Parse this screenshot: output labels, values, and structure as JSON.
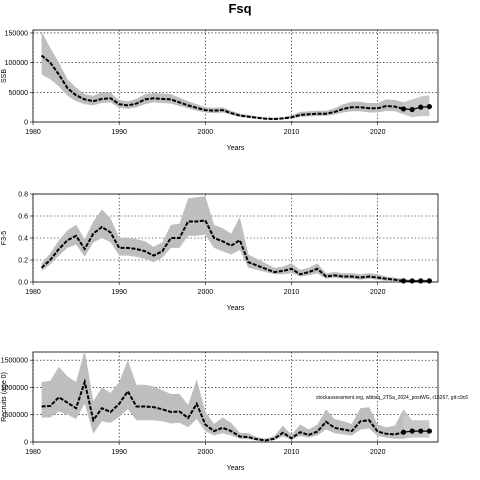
{
  "title": "Fsq",
  "annotation": "stockassessment.org, wbbsq_2TSa_2024_postWG, r15267, git:c9c6",
  "colors": {
    "band": "#bebebe",
    "line": "#000000",
    "grid": "#000000"
  },
  "chart_data": [
    {
      "type": "line",
      "ylabel": "SSB",
      "xlabel": "Years",
      "xlim": [
        1980,
        2027
      ],
      "ylim": [
        0,
        155000
      ],
      "xticks": [
        1980,
        1990,
        2000,
        2010,
        2020
      ],
      "yticks": [
        0,
        50000,
        100000,
        150000
      ],
      "ytick_labels": [
        "0",
        "50000",
        "100000",
        "150000"
      ],
      "grid": true,
      "series": [
        {
          "x": [
            1981,
            1982,
            1983,
            1984,
            1985,
            1986,
            1987,
            1988,
            1989,
            1990,
            1991,
            1992,
            1993,
            1994,
            1995,
            1996,
            1997,
            1998,
            1999,
            2000,
            2001,
            2002,
            2003,
            2004,
            2005,
            2006,
            2007,
            2008,
            2009,
            2010,
            2011,
            2012,
            2013,
            2014,
            2015,
            2016,
            2017,
            2018,
            2019,
            2020,
            2021,
            2022,
            2023
          ],
          "estimate": [
            112000,
            100000,
            80000,
            57000,
            45000,
            38000,
            35000,
            39000,
            40000,
            30000,
            28000,
            31000,
            38000,
            40000,
            39000,
            38000,
            33000,
            28000,
            24000,
            20000,
            19000,
            20000,
            15000,
            11000,
            9000,
            7000,
            5500,
            5000,
            6000,
            8000,
            12000,
            13000,
            14000,
            14000,
            17000,
            22000,
            25000,
            25000,
            23000,
            23000,
            27000,
            26000,
            22000
          ],
          "lower": [
            80000,
            72000,
            60000,
            44000,
            35000,
            30000,
            28000,
            32000,
            33000,
            24000,
            22000,
            25000,
            30000,
            33000,
            32000,
            31000,
            27000,
            23000,
            19000,
            16000,
            15000,
            16000,
            12000,
            8500,
            7000,
            5200,
            4000,
            3600,
            4500,
            5500,
            8500,
            9500,
            10000,
            10500,
            12500,
            16000,
            18000,
            18000,
            16000,
            16000,
            18500,
            18000,
            13000
          ],
          "upper": [
            152000,
            125000,
            100000,
            72000,
            58000,
            47000,
            44000,
            50000,
            49000,
            37000,
            35000,
            39000,
            47000,
            49000,
            48000,
            47000,
            41000,
            35000,
            30000,
            25000,
            24000,
            25000,
            19000,
            14000,
            12000,
            9500,
            7500,
            7000,
            8000,
            11000,
            17000,
            18000,
            19000,
            19000,
            23000,
            30000,
            34000,
            34000,
            32000,
            32000,
            38000,
            37000,
            33000
          ]
        },
        {
          "x": [
            2023,
            2024,
            2025,
            2026
          ],
          "estimate": [
            22000,
            21000,
            25000,
            26000
          ],
          "lower": [
            13000,
            8000,
            10000,
            10000
          ],
          "upper": [
            33000,
            38000,
            43000,
            45000
          ]
        }
      ],
      "forecast_points": {
        "x": [
          2023,
          2024,
          2025,
          2026
        ],
        "y": [
          22000,
          21000,
          25000,
          26000
        ]
      }
    },
    {
      "type": "line",
      "ylabel": "F3-5",
      "xlabel": "Years",
      "xlim": [
        1980,
        2027
      ],
      "ylim": [
        0,
        0.8
      ],
      "xticks": [
        1980,
        1990,
        2000,
        2010,
        2020
      ],
      "yticks": [
        0.0,
        0.2,
        0.4,
        0.6,
        0.8
      ],
      "ytick_labels": [
        "0.0",
        "0.2",
        "0.4",
        "0.6",
        "0.8"
      ],
      "grid": true,
      "series": [
        {
          "x": [
            1981,
            1982,
            1983,
            1984,
            1985,
            1986,
            1987,
            1988,
            1989,
            1990,
            1991,
            1992,
            1993,
            1994,
            1995,
            1996,
            1997,
            1998,
            1999,
            2000,
            2001,
            2002,
            2003,
            2004,
            2005,
            2006,
            2007,
            2008,
            2009,
            2010,
            2011,
            2012,
            2013,
            2014,
            2015,
            2016,
            2017,
            2018,
            2019,
            2020,
            2021,
            2022,
            2023
          ],
          "estimate": [
            0.13,
            0.2,
            0.3,
            0.38,
            0.42,
            0.3,
            0.44,
            0.5,
            0.45,
            0.31,
            0.31,
            0.3,
            0.28,
            0.24,
            0.28,
            0.4,
            0.4,
            0.55,
            0.55,
            0.56,
            0.4,
            0.37,
            0.33,
            0.38,
            0.18,
            0.15,
            0.12,
            0.09,
            0.1,
            0.12,
            0.07,
            0.09,
            0.12,
            0.05,
            0.06,
            0.05,
            0.05,
            0.04,
            0.05,
            0.04,
            0.03,
            0.02,
            0.01
          ],
          "lower": [
            0.1,
            0.16,
            0.24,
            0.31,
            0.34,
            0.23,
            0.36,
            0.4,
            0.36,
            0.24,
            0.24,
            0.23,
            0.21,
            0.18,
            0.22,
            0.31,
            0.31,
            0.42,
            0.42,
            0.43,
            0.31,
            0.28,
            0.25,
            0.29,
            0.13,
            0.11,
            0.09,
            0.07,
            0.07,
            0.08,
            0.05,
            0.06,
            0.08,
            0.03,
            0.04,
            0.03,
            0.03,
            0.02,
            0.03,
            0.02,
            0.01,
            0.01,
            0.005
          ],
          "upper": [
            0.17,
            0.26,
            0.38,
            0.47,
            0.52,
            0.39,
            0.55,
            0.66,
            0.58,
            0.4,
            0.4,
            0.39,
            0.37,
            0.32,
            0.36,
            0.52,
            0.53,
            0.76,
            0.77,
            0.78,
            0.52,
            0.49,
            0.44,
            0.59,
            0.25,
            0.21,
            0.17,
            0.13,
            0.14,
            0.17,
            0.11,
            0.13,
            0.17,
            0.08,
            0.09,
            0.08,
            0.08,
            0.07,
            0.08,
            0.07,
            0.05,
            0.04,
            0.03
          ]
        },
        {
          "x": [
            2023,
            2024,
            2025,
            2026
          ],
          "estimate": [
            0.01,
            0.01,
            0.01,
            0.01
          ],
          "lower": [
            0.005,
            0.005,
            0.005,
            0.005
          ],
          "upper": [
            0.03,
            0.02,
            0.02,
            0.02
          ]
        }
      ],
      "forecast_points": {
        "x": [
          2023,
          2024,
          2025,
          2026
        ],
        "y": [
          0.01,
          0.01,
          0.01,
          0.01
        ]
      }
    },
    {
      "type": "line",
      "ylabel": "Recruits (age 0)",
      "xlabel": "Years",
      "xlim": [
        1980,
        2027
      ],
      "ylim": [
        0,
        1650000
      ],
      "xticks": [
        1980,
        1990,
        2000,
        2010,
        2020
      ],
      "yticks": [
        0,
        500000,
        1000000,
        1500000
      ],
      "ytick_labels": [
        "0",
        "500000",
        "1000000",
        "1500000"
      ],
      "grid": true,
      "series": [
        {
          "x": [
            1981,
            1982,
            1983,
            1984,
            1985,
            1986,
            1987,
            1988,
            1989,
            1990,
            1991,
            1992,
            1993,
            1994,
            1995,
            1996,
            1997,
            1998,
            1999,
            2000,
            2001,
            2002,
            2003,
            2004,
            2005,
            2006,
            2007,
            2008,
            2009,
            2010,
            2011,
            2012,
            2013,
            2014,
            2015,
            2016,
            2017,
            2018,
            2019,
            2020,
            2021,
            2022,
            2023
          ],
          "estimate": [
            650000,
            660000,
            820000,
            720000,
            620000,
            1100000,
            400000,
            620000,
            550000,
            700000,
            930000,
            650000,
            650000,
            640000,
            600000,
            550000,
            560000,
            440000,
            700000,
            320000,
            200000,
            260000,
            200000,
            100000,
            90000,
            50000,
            30000,
            60000,
            170000,
            70000,
            180000,
            130000,
            190000,
            370000,
            260000,
            230000,
            200000,
            380000,
            400000,
            190000,
            150000,
            140000,
            180000
          ],
          "lower": [
            450000,
            450000,
            560000,
            500000,
            420000,
            700000,
            150000,
            380000,
            350000,
            460000,
            600000,
            400000,
            400000,
            400000,
            380000,
            340000,
            350000,
            270000,
            420000,
            200000,
            120000,
            160000,
            120000,
            60000,
            50000,
            25000,
            15000,
            35000,
            100000,
            40000,
            110000,
            80000,
            120000,
            230000,
            160000,
            140000,
            120000,
            230000,
            250000,
            110000,
            80000,
            60000,
            60000
          ],
          "upper": [
            1100000,
            1120000,
            1380000,
            1200000,
            1100000,
            1680000,
            750000,
            1000000,
            900000,
            1100000,
            1500000,
            1050000,
            1050000,
            1020000,
            950000,
            880000,
            880000,
            680000,
            1150000,
            560000,
            330000,
            450000,
            350000,
            170000,
            160000,
            90000,
            60000,
            110000,
            300000,
            130000,
            320000,
            230000,
            320000,
            600000,
            420000,
            380000,
            330000,
            620000,
            640000,
            320000,
            270000,
            300000,
            600000
          ]
        },
        {
          "x": [
            2023,
            2024,
            2025,
            2026
          ],
          "estimate": [
            180000,
            200000,
            200000,
            200000
          ],
          "lower": [
            60000,
            80000,
            80000,
            80000
          ],
          "upper": [
            600000,
            400000,
            400000,
            400000
          ]
        }
      ],
      "forecast_points": {
        "x": [
          2023,
          2024,
          2025,
          2026
        ],
        "y": [
          180000,
          200000,
          200000,
          200000
        ]
      }
    }
  ]
}
